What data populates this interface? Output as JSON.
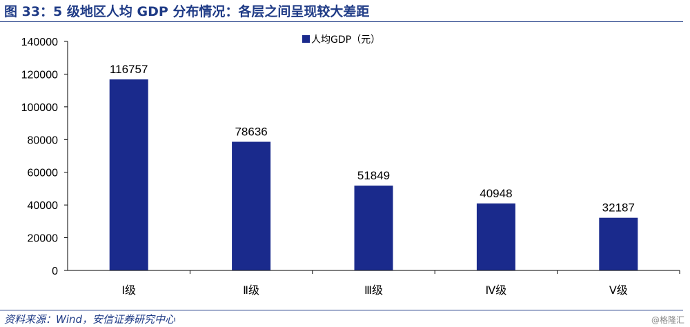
{
  "header": {
    "title": "图 33：5 级地区人均 GDP 分布情况：各层之间呈现较大差距"
  },
  "footer": {
    "source": "资料来源：Wind，安信证券研究中心",
    "watermark": "@格隆汇"
  },
  "colors": {
    "bar": "#1a2a8c",
    "title": "#1f3b86",
    "axis": "#000000"
  },
  "chart_data": {
    "type": "bar",
    "title": "",
    "xlabel": "",
    "ylabel": "",
    "categories": [
      "Ⅰ级",
      "Ⅱ级",
      "Ⅲ级",
      "Ⅳ级",
      "Ⅴ级"
    ],
    "series": [
      {
        "name": "人均GDP（元）",
        "values": [
          116757,
          78636,
          51849,
          40948,
          32187
        ]
      }
    ],
    "ylim": [
      0,
      140000
    ],
    "yticks": [
      0,
      20000,
      40000,
      60000,
      80000,
      100000,
      120000,
      140000
    ],
    "data_labels": true,
    "grid": false,
    "legend": "top-center"
  }
}
